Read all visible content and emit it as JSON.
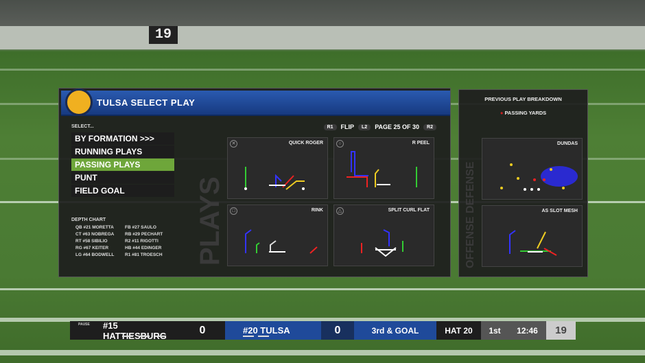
{
  "stadium": {
    "scoreboard_number": "19"
  },
  "panel": {
    "title": "TULSA SELECT PLAY",
    "select_label": "SELECT...",
    "vertical_text": "PLAYS",
    "menu": [
      {
        "label": "BY FORMATION >>>",
        "selected": false
      },
      {
        "label": "RUNNING PLAYS",
        "selected": false
      },
      {
        "label": "PASSING PLAYS",
        "selected": true
      },
      {
        "label": "PUNT",
        "selected": false
      },
      {
        "label": "FIELD GOAL",
        "selected": false
      }
    ],
    "depth_chart": {
      "title": "DEPTH CHART",
      "entries": [
        "QB #21 MORETTA",
        "FB #27 SAULO",
        "CT #63 NOBREGA",
        "RB #29 PECHART",
        "RT #58 SIBILIO",
        "R2 #11 RIGOTTI",
        "RG #67 KEITER",
        "HB #44 EDINGER",
        "LG #64 BODWELL",
        "R1 #81 TROESCH"
      ]
    },
    "nav": {
      "r1": "R1",
      "flip": "FLIP",
      "l2": "L2",
      "page": "PAGE 25 OF 30",
      "r2": "R2"
    },
    "plays": [
      {
        "name": "QUICK ROGER",
        "button": "cross"
      },
      {
        "name": "R PEEL",
        "button": "circle"
      },
      {
        "name": "RINK",
        "button": "square"
      },
      {
        "name": "SPLIT CURL FLAT",
        "button": "triangle"
      }
    ]
  },
  "breakdown": {
    "title": "PREVIOUS PLAY BREAKDOWN",
    "legend": "PASSING YARDS",
    "legend_color": "#d02020",
    "vertical_text": "OFFENSE DEFENSE",
    "cards": [
      {
        "name": "DUNDAS"
      },
      {
        "name": "AS SLOT MESH"
      }
    ]
  },
  "scoreboard": {
    "pause": "PAUSE",
    "away": {
      "name": "#15 HATTIESBURG",
      "score": "0"
    },
    "home": {
      "name": "#20 TULSA",
      "score": "0"
    },
    "down": "3rd & GOAL",
    "spot": "HAT 20",
    "quarter": "1st",
    "clock": "12:46",
    "play_clock": "19"
  },
  "colors": {
    "header_blue": "#1f4a9a",
    "selected_green": "#6ea63a"
  }
}
